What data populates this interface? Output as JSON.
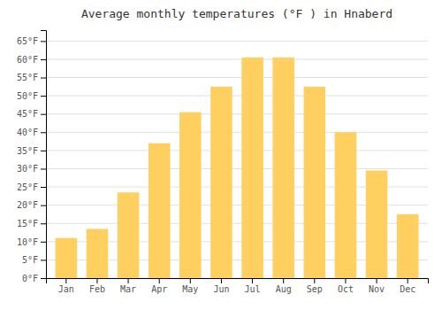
{
  "chart_data": {
    "type": "bar",
    "title": "Average monthly temperatures (°F ) in Hnaberd",
    "categories": [
      "Jan",
      "Feb",
      "Mar",
      "Apr",
      "May",
      "Jun",
      "Jul",
      "Aug",
      "Sep",
      "Oct",
      "Nov",
      "Dec"
    ],
    "values": [
      11,
      13.5,
      23.5,
      37,
      45.5,
      52.5,
      60.5,
      60.5,
      52.5,
      40,
      29.5,
      17.5
    ],
    "color": "#FFD060",
    "ylim": [
      0,
      68
    ],
    "yticks": [
      {
        "value": 0,
        "label": "0°F"
      },
      {
        "value": 5,
        "label": "5°F"
      },
      {
        "value": 10,
        "label": "10°F"
      },
      {
        "value": 15,
        "label": "15°F"
      },
      {
        "value": 20,
        "label": "20°F"
      },
      {
        "value": 25,
        "label": "25°F"
      },
      {
        "value": 30,
        "label": "30°F"
      },
      {
        "value": 35,
        "label": "35°F"
      },
      {
        "value": 40,
        "label": "40°F"
      },
      {
        "value": 45,
        "label": "45°F"
      },
      {
        "value": 50,
        "label": "50°F"
      },
      {
        "value": 55,
        "label": "55°F"
      },
      {
        "value": 60,
        "label": "60°F"
      },
      {
        "value": 65,
        "label": "65°F"
      }
    ],
    "grid": true
  }
}
